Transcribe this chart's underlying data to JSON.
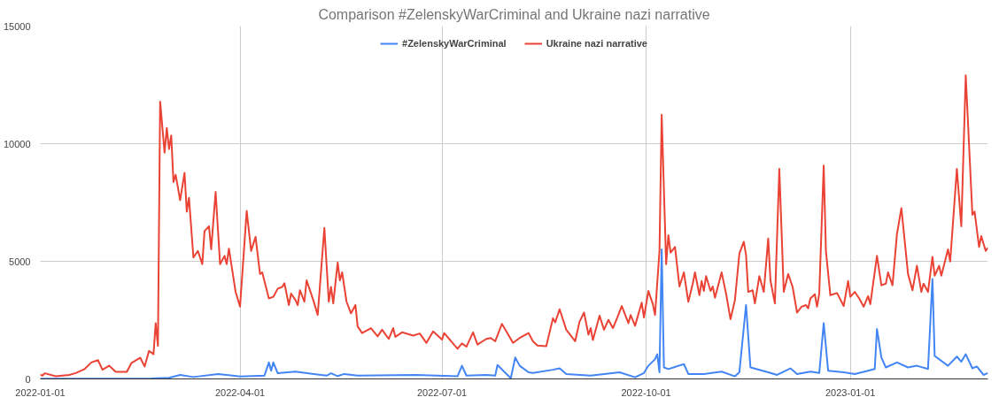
{
  "chart_data": {
    "type": "line",
    "title": "Comparison #ZelenskyWarCriminal and Ukraine nazi narrative",
    "legend": "top",
    "grid": true,
    "marker": "none",
    "line_style": "solid",
    "xlim": [
      "2022-01-01",
      "2023-03-04"
    ],
    "xticks": [
      "2022-01-01",
      "2022-04-01",
      "2022-07-01",
      "2022-10-01",
      "2023-01-01"
    ],
    "ylim": [
      0,
      15000
    ],
    "yticks": [
      0,
      5000,
      10000,
      15000
    ],
    "series": [
      {
        "name": "#ZelenskyWarCriminal",
        "color": "#4285f4",
        "x": [
          "2022-01-01",
          "2022-02-20",
          "2022-02-28",
          "2022-03-05",
          "2022-03-11",
          "2022-03-22",
          "2022-04-01",
          "2022-04-12",
          "2022-04-14",
          "2022-04-15",
          "2022-04-16",
          "2022-04-18",
          "2022-04-26",
          "2022-05-05",
          "2022-05-10",
          "2022-05-12",
          "2022-05-15",
          "2022-05-18",
          "2022-05-24",
          "2022-06-19",
          "2022-07-08",
          "2022-07-10",
          "2022-07-12",
          "2022-07-21",
          "2022-07-25",
          "2022-07-26",
          "2022-07-29",
          "2022-08-01",
          "2022-08-03",
          "2022-08-05",
          "2022-08-09",
          "2022-08-11",
          "2022-08-20",
          "2022-08-23",
          "2022-08-26",
          "2022-09-06",
          "2022-09-19",
          "2022-09-26",
          "2022-09-30",
          "2022-10-02",
          "2022-10-05",
          "2022-10-06",
          "2022-10-07",
          "2022-10-08",
          "2022-10-09",
          "2022-10-11",
          "2022-10-18",
          "2022-10-20",
          "2022-10-27",
          "2022-11-04",
          "2022-11-10",
          "2022-11-12",
          "2022-11-15",
          "2022-11-17",
          "2022-11-25",
          "2022-11-29",
          "2022-12-05",
          "2022-12-08",
          "2022-12-14",
          "2022-12-18",
          "2022-12-20",
          "2022-12-22",
          "2022-12-29",
          "2023-01-03",
          "2023-01-09",
          "2023-01-12",
          "2023-01-13",
          "2023-01-15",
          "2023-01-17",
          "2023-01-22",
          "2023-01-27",
          "2023-01-31",
          "2023-02-05",
          "2023-02-07",
          "2023-02-08",
          "2023-02-14",
          "2023-02-18",
          "2023-02-20",
          "2023-02-22",
          "2023-02-25",
          "2023-02-27",
          "2023-03-02",
          "2023-03-04"
        ],
        "values": [
          10,
          20,
          50,
          170,
          80,
          210,
          100,
          140,
          700,
          350,
          700,
          240,
          310,
          200,
          140,
          240,
          120,
          210,
          140,
          170,
          110,
          560,
          140,
          170,
          140,
          590,
          310,
          30,
          910,
          560,
          280,
          250,
          390,
          450,
          210,
          140,
          280,
          70,
          250,
          560,
          840,
          1050,
          280,
          5510,
          490,
          420,
          630,
          210,
          210,
          310,
          110,
          280,
          3140,
          490,
          280,
          170,
          450,
          210,
          310,
          250,
          2370,
          350,
          280,
          210,
          350,
          420,
          2120,
          910,
          490,
          700,
          490,
          560,
          420,
          4250,
          980,
          560,
          950,
          730,
          1050,
          450,
          530,
          170,
          250
        ]
      },
      {
        "name": "Ukraine nazi narrative",
        "color": "#ea4335",
        "x": [
          "2022-01-01",
          "2022-01-02",
          "2022-01-03",
          "2022-01-08",
          "2022-01-14",
          "2022-01-17",
          "2022-01-21",
          "2022-01-24",
          "2022-01-27",
          "2022-01-29",
          "2022-02-01",
          "2022-02-04",
          "2022-02-09",
          "2022-02-11",
          "2022-02-15",
          "2022-02-17",
          "2022-02-19",
          "2022-02-21",
          "2022-02-22",
          "2022-02-23",
          "2022-02-24",
          "2022-02-26",
          "2022-02-27",
          "2022-02-28",
          "2022-03-01",
          "2022-03-02",
          "2022-03-03",
          "2022-03-05",
          "2022-03-07",
          "2022-03-08",
          "2022-03-09",
          "2022-03-11",
          "2022-03-13",
          "2022-03-15",
          "2022-03-16",
          "2022-03-18",
          "2022-03-19",
          "2022-03-21",
          "2022-03-23",
          "2022-03-25",
          "2022-03-26",
          "2022-03-27",
          "2022-03-30",
          "2022-04-01",
          "2022-04-04",
          "2022-04-06",
          "2022-04-08",
          "2022-04-10",
          "2022-04-11",
          "2022-04-14",
          "2022-04-16",
          "2022-04-18",
          "2022-04-20",
          "2022-04-21",
          "2022-04-23",
          "2022-04-24",
          "2022-04-26",
          "2022-04-27",
          "2022-04-28",
          "2022-04-30",
          "2022-05-01",
          "2022-05-03",
          "2022-05-04",
          "2022-05-06",
          "2022-05-09",
          "2022-05-11",
          "2022-05-12",
          "2022-05-13",
          "2022-05-15",
          "2022-05-16",
          "2022-05-17",
          "2022-05-19",
          "2022-05-21",
          "2022-05-23",
          "2022-05-24",
          "2022-05-26",
          "2022-05-30",
          "2022-06-02",
          "2022-06-04",
          "2022-06-07",
          "2022-06-09",
          "2022-06-10",
          "2022-06-13",
          "2022-06-18",
          "2022-06-21",
          "2022-06-24",
          "2022-06-27",
          "2022-07-01",
          "2022-07-02",
          "2022-07-08",
          "2022-07-10",
          "2022-07-12",
          "2022-07-15",
          "2022-07-17",
          "2022-07-21",
          "2022-07-23",
          "2022-07-25",
          "2022-07-28",
          "2022-07-30",
          "2022-08-02",
          "2022-08-05",
          "2022-08-09",
          "2022-08-11",
          "2022-08-13",
          "2022-08-17",
          "2022-08-20",
          "2022-08-21",
          "2022-08-23",
          "2022-08-26",
          "2022-08-30",
          "2022-09-01",
          "2022-09-03",
          "2022-09-05",
          "2022-09-06",
          "2022-09-07",
          "2022-09-10",
          "2022-09-12",
          "2022-09-14",
          "2022-09-16",
          "2022-09-18",
          "2022-09-20",
          "2022-09-23",
          "2022-09-24",
          "2022-09-26",
          "2022-09-29",
          "2022-09-30",
          "2022-10-02",
          "2022-10-04",
          "2022-10-05",
          "2022-10-07",
          "2022-10-08",
          "2022-10-10",
          "2022-10-11",
          "2022-10-12",
          "2022-10-14",
          "2022-10-16",
          "2022-10-18",
          "2022-10-20",
          "2022-10-22",
          "2022-10-23",
          "2022-10-25",
          "2022-10-26",
          "2022-10-27",
          "2022-10-28",
          "2022-10-30",
          "2022-10-31",
          "2022-11-01",
          "2022-11-04",
          "2022-11-06",
          "2022-11-08",
          "2022-11-10",
          "2022-11-12",
          "2022-11-14",
          "2022-11-15",
          "2022-11-16",
          "2022-11-18",
          "2022-11-19",
          "2022-11-21",
          "2022-11-23",
          "2022-11-25",
          "2022-11-26",
          "2022-11-28",
          "2022-11-30",
          "2022-12-02",
          "2022-12-04",
          "2022-12-06",
          "2022-12-08",
          "2022-12-10",
          "2022-12-12",
          "2022-12-13",
          "2022-12-14",
          "2022-12-16",
          "2022-12-17",
          "2022-12-18",
          "2022-12-20",
          "2022-12-21",
          "2022-12-23",
          "2022-12-26",
          "2022-12-29",
          "2022-12-31",
          "2023-01-01",
          "2023-01-03",
          "2023-01-05",
          "2023-01-07",
          "2023-01-09",
          "2023-01-10",
          "2023-01-13",
          "2023-01-15",
          "2023-01-17",
          "2023-01-18",
          "2023-01-20",
          "2023-01-22",
          "2023-01-24",
          "2023-01-27",
          "2023-01-29",
          "2023-01-31",
          "2023-02-02",
          "2023-02-03",
          "2023-02-05",
          "2023-02-07",
          "2023-02-08",
          "2023-02-10",
          "2023-02-11",
          "2023-02-14",
          "2023-02-15",
          "2023-02-18",
          "2023-02-20",
          "2023-02-22",
          "2023-02-25",
          "2023-02-26",
          "2023-02-28",
          "2023-03-01",
          "2023-03-03",
          "2023-03-04"
        ],
        "values": [
          180,
          140,
          240,
          110,
          170,
          250,
          420,
          700,
          800,
          390,
          560,
          300,
          300,
          670,
          900,
          530,
          1190,
          1050,
          2370,
          1400,
          11790,
          9620,
          10670,
          9770,
          10350,
          8370,
          8680,
          7600,
          8760,
          7110,
          7700,
          5160,
          5440,
          4880,
          6280,
          6490,
          5510,
          7950,
          4880,
          5230,
          4880,
          5540,
          3700,
          3070,
          7140,
          5440,
          6040,
          4460,
          4530,
          3420,
          3490,
          3840,
          3910,
          4070,
          3140,
          3630,
          3350,
          3140,
          3770,
          3280,
          4190,
          3630,
          3350,
          2720,
          6420,
          3280,
          3910,
          3210,
          4950,
          4190,
          4530,
          3280,
          2790,
          3140,
          2230,
          1950,
          2160,
          1810,
          2090,
          1700,
          2160,
          1790,
          1980,
          1840,
          1930,
          1530,
          2020,
          1670,
          1950,
          1280,
          1510,
          1370,
          1980,
          1460,
          1700,
          1740,
          1600,
          2340,
          2020,
          1530,
          1740,
          1950,
          1600,
          1420,
          1390,
          2580,
          2400,
          2960,
          2090,
          1600,
          2440,
          2820,
          1880,
          2160,
          1650,
          2690,
          2090,
          2510,
          2160,
          2610,
          3100,
          2370,
          2720,
          2260,
          3240,
          2610,
          3740,
          3180,
          2720,
          5440,
          11230,
          4880,
          6110,
          5370,
          5610,
          3930,
          4530,
          3280,
          4050,
          4530,
          3560,
          4160,
          3740,
          4370,
          3740,
          3930,
          3450,
          4530,
          3630,
          2540,
          3350,
          5330,
          5830,
          5270,
          3700,
          3770,
          3210,
          4370,
          3700,
          5970,
          4190,
          3210,
          8930,
          3700,
          4460,
          3910,
          2820,
          3070,
          3140,
          3000,
          3420,
          3600,
          3070,
          3630,
          9070,
          5440,
          3560,
          3650,
          3100,
          4160,
          3490,
          3700,
          3420,
          3070,
          3520,
          3180,
          5230,
          3980,
          4050,
          4530,
          3980,
          6150,
          7260,
          4460,
          3770,
          4810,
          3700,
          4050,
          3700,
          5190,
          4390,
          4810,
          4390,
          5510,
          4990,
          8930,
          6490,
          12900,
          6980,
          7110,
          5610,
          6070,
          5440,
          5580
        ]
      }
    ]
  }
}
